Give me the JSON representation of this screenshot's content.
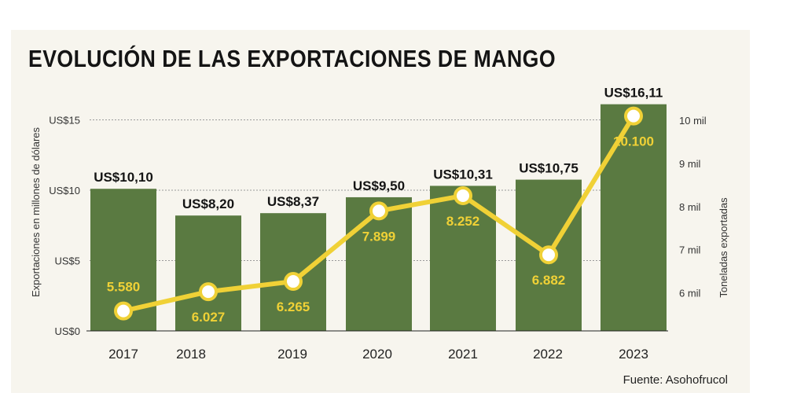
{
  "chart_data": {
    "type": "bar+line",
    "title": "EVOLUCIÓN DE LAS EXPORTACIONES DE MANGO",
    "categories": [
      "2017",
      "2018",
      "2019",
      "2020",
      "2021",
      "2022",
      "2023"
    ],
    "series": [
      {
        "name": "Exportaciones en millones de dólares",
        "type": "bar",
        "axis": "left",
        "values": [
          10.1,
          8.2,
          8.37,
          9.5,
          10.31,
          10.75,
          16.11
        ],
        "labels": [
          "US$10,10",
          "US$8,20",
          "US$8,37",
          "US$9,50",
          "US$10,31",
          "US$10,75",
          "US$16,11"
        ],
        "color": "#5a7a41"
      },
      {
        "name": "Toneladas exportadas",
        "type": "line",
        "axis": "right",
        "values": [
          5580,
          6027,
          6265,
          7899,
          8252,
          6882,
          10100
        ],
        "labels": [
          "5.580",
          "6.027",
          "6.265",
          "7.899",
          "8.252",
          "6.882",
          "10.100"
        ],
        "color": "#f0d136"
      }
    ],
    "ylabel": "Exportaciones en millones de dólares",
    "ylim": [
      0,
      18
    ],
    "yticks": [
      0,
      5,
      10,
      15
    ],
    "ytick_labels": [
      "US$0",
      "US$5",
      "US$10",
      "US$15"
    ],
    "y2label": "Toneladas exportadas",
    "y2lim": [
      5300,
      10330
    ],
    "y2ticks": [
      6000,
      7000,
      8000,
      9000,
      10000
    ],
    "y2tick_labels": [
      "6 mil",
      "7 mil",
      "8 mil",
      "9 mil",
      "10 mil"
    ],
    "grid": true,
    "source": "Fuente: Asohofrucol"
  },
  "colors": {
    "background": "#f7f5ee",
    "bar": "#5a7a41",
    "line": "#f0d136",
    "text": "#141414",
    "grid": "#9a9a9a"
  }
}
